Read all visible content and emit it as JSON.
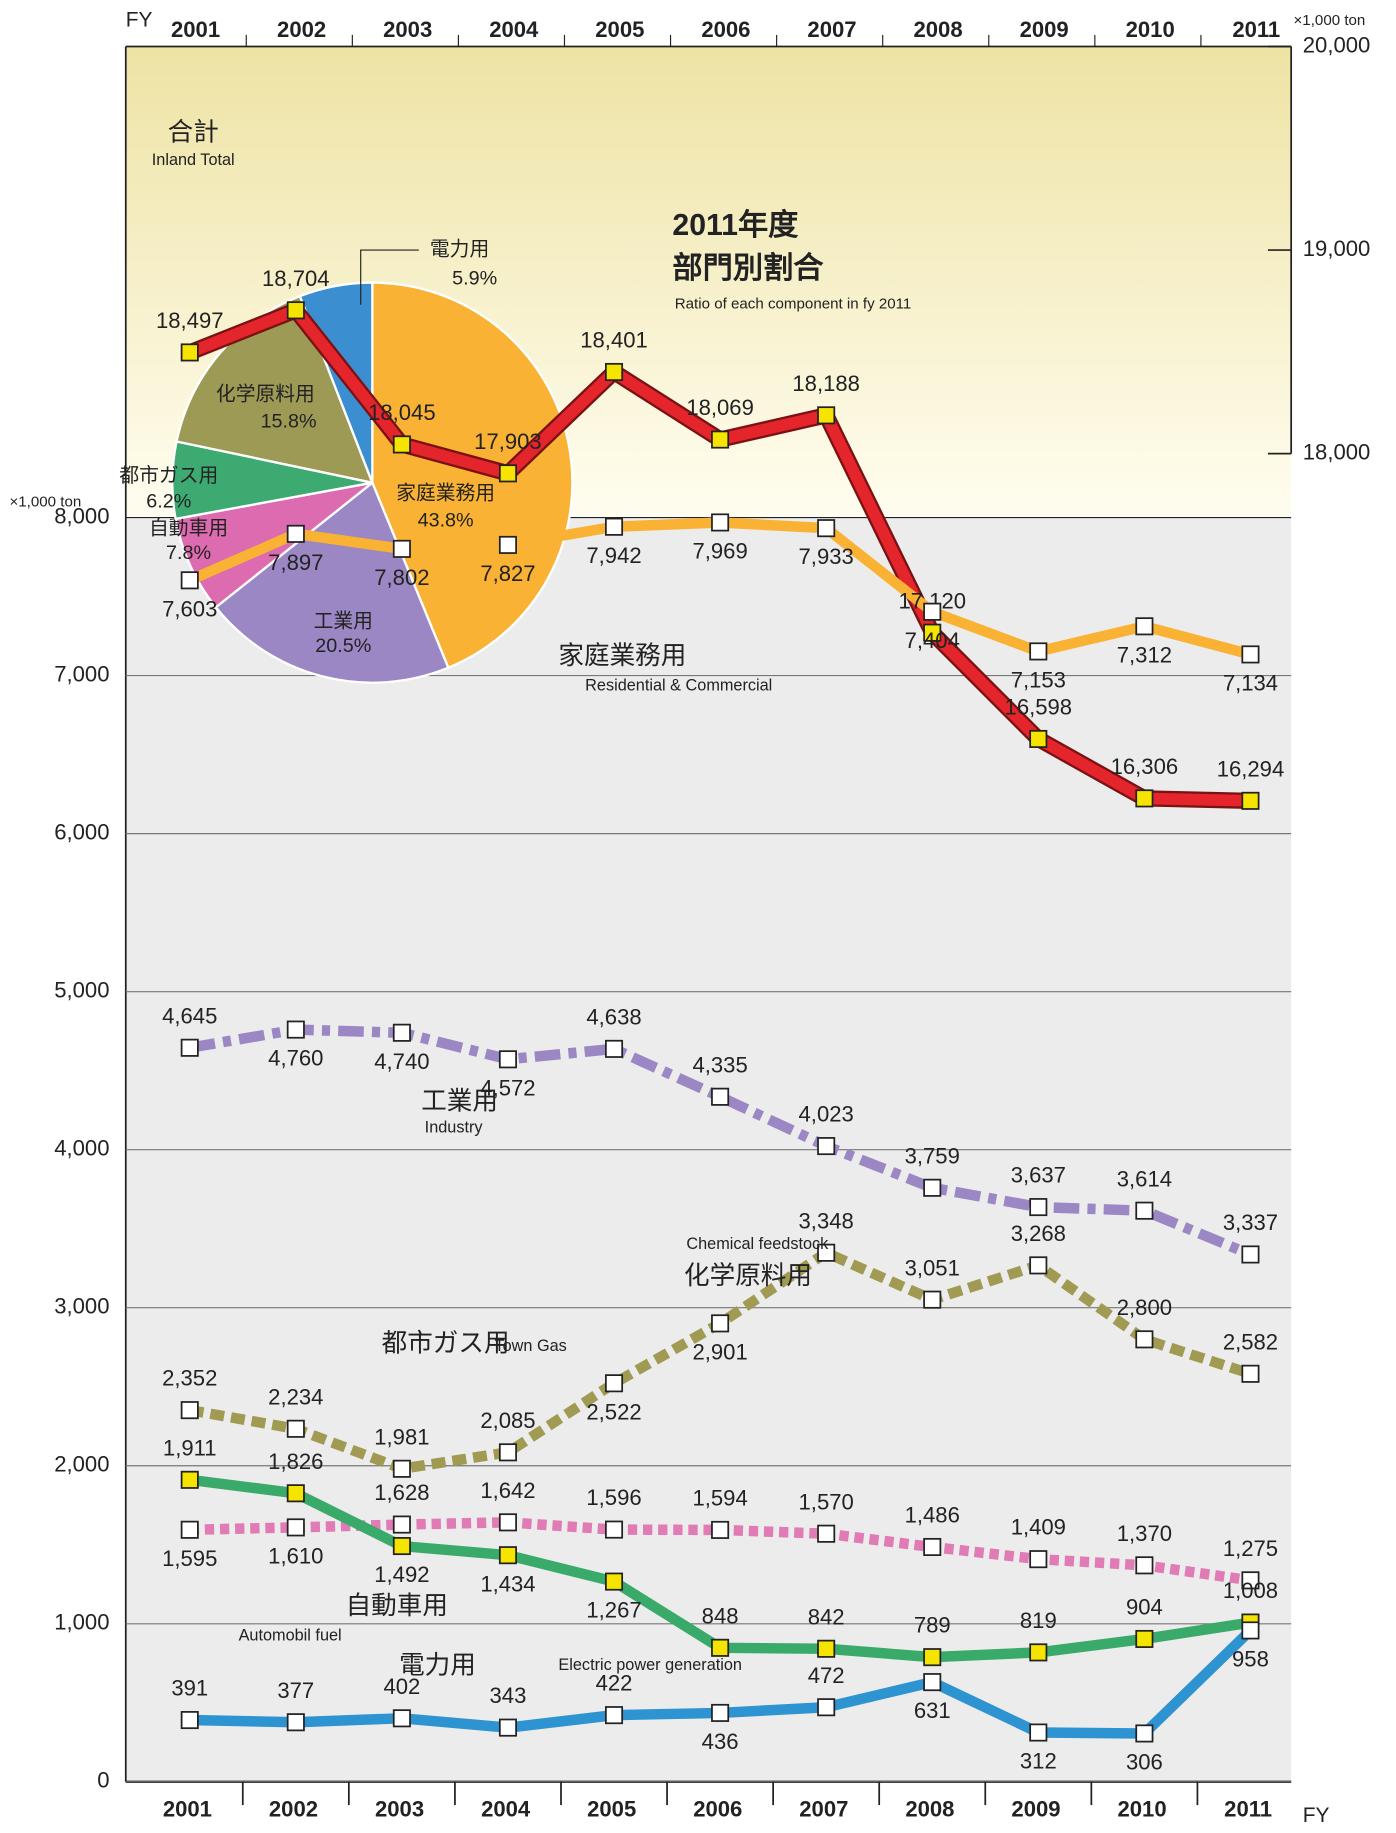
{
  "chart_data": [
    {
      "type": "line",
      "x_label": "FY",
      "y_unit": "×1,000 ton",
      "y2_unit": "×1,000 ton",
      "categories": [
        "2001",
        "2002",
        "2003",
        "2004",
        "2005",
        "2006",
        "2007",
        "2008",
        "2009",
        "2010",
        "2011"
      ],
      "ylim": [
        0,
        8000
      ],
      "yticks": [
        0,
        {
          "value": 1000,
          "label": "1,000"
        },
        {
          "value": 2000,
          "label": "2,000"
        },
        {
          "value": 3000,
          "label": "3,000"
        },
        {
          "value": 4000,
          "label": "4,000"
        },
        {
          "value": 5000,
          "label": "5,000"
        },
        {
          "value": 6000,
          "label": "6,000"
        },
        {
          "value": 7000,
          "label": "7,000"
        },
        {
          "value": 8000,
          "label": "8,000"
        }
      ],
      "y2lim": [
        18000,
        20000
      ],
      "y2ticks": [
        {
          "value": 18000,
          "label": "18,000"
        },
        {
          "value": 19000,
          "label": "19,000"
        },
        {
          "value": 20000,
          "label": "20,000"
        }
      ],
      "grid": true,
      "series": [
        {
          "name": "合計",
          "name_en": "Inland Total",
          "color": "#e4252b",
          "axis": "y2",
          "values": [
            18497,
            18704,
            18045,
            17903,
            18401,
            18069,
            18188,
            17120,
            16598,
            16306,
            16294
          ],
          "value_labels": [
            "18,497",
            "18,704",
            "18,045",
            "17,903",
            "18,401",
            "18,069",
            "18,188",
            "17,120",
            "16,598",
            "16,306",
            "16,294"
          ]
        },
        {
          "name": "家庭業務用",
          "name_en": "Residential & Commercial",
          "color": "#f9b233",
          "values": [
            7603,
            7897,
            7802,
            7827,
            7942,
            7969,
            7933,
            7404,
            7153,
            7312,
            7134
          ],
          "value_labels": [
            "7,603",
            "7,897",
            "7,802",
            "7,827",
            "7,942",
            "7,969",
            "7,933",
            "7,404",
            "7,153",
            "7,312",
            "7,134"
          ]
        },
        {
          "name": "工業用",
          "name_en": "Industry",
          "color": "#9b87c3",
          "values": [
            4645,
            4760,
            4740,
            4572,
            4638,
            4335,
            4023,
            3759,
            3637,
            3614,
            3337
          ],
          "value_labels": [
            "4,645",
            "4,760",
            "4,740",
            "4,572",
            "4,638",
            "4,335",
            "4,023",
            "3,759",
            "3,637",
            "3,614",
            "3,337"
          ]
        },
        {
          "name": "化学原料用",
          "name_en": "Chemical feedstock",
          "color": "#a09a52",
          "values": [
            2352,
            2234,
            1981,
            2085,
            2522,
            2901,
            3348,
            3051,
            3268,
            2800,
            2582
          ],
          "value_labels": [
            "2,352",
            "2,234",
            "1,981",
            "2,085",
            "2,522",
            "2,901",
            "3,348",
            "3,051",
            "3,268",
            "2,800",
            "2,582"
          ]
        },
        {
          "name": "自動車用",
          "name_en": "Automobil fuel",
          "color": "#e07bb5",
          "values": [
            1595,
            1610,
            1628,
            1642,
            1596,
            1594,
            1570,
            1486,
            1409,
            1370,
            1275
          ],
          "value_labels": [
            "1,595",
            "1,610",
            "1,628",
            "1,642",
            "1,596",
            "1,594",
            "1,570",
            "1,486",
            "1,409",
            "1,370",
            "1,275"
          ]
        },
        {
          "name": "都市ガス用",
          "name_en": "Town Gas",
          "color": "#3aaa6b",
          "values": [
            1911,
            1826,
            1492,
            1434,
            1267,
            848,
            842,
            789,
            819,
            904,
            1008
          ],
          "value_labels": [
            "1,911",
            "1,826",
            "1,492",
            "1,434",
            "1,267",
            "848",
            "842",
            "789",
            "819",
            "904",
            "1,008"
          ]
        },
        {
          "name": "電力用",
          "name_en": "Electric power generation",
          "color": "#2e93d1",
          "values": [
            391,
            377,
            402,
            343,
            422,
            436,
            472,
            631,
            312,
            306,
            958
          ],
          "value_labels": [
            "391",
            "377",
            "402",
            "343",
            "422",
            "436",
            "472",
            "631",
            "312",
            "306",
            "958"
          ]
        }
      ]
    },
    {
      "type": "pie",
      "title": "2011年度",
      "subtitle": "部門別割合",
      "caption": "Ratio of each component in fy 2011",
      "categories": [
        "家庭業務用",
        "工業用",
        "自動車用",
        "都市ガス用",
        "化学原料用",
        "電力用"
      ],
      "values": [
        43.8,
        20.5,
        7.8,
        6.2,
        15.8,
        5.9
      ],
      "value_labels": [
        "43.8%",
        "20.5%",
        "7.8%",
        "6.2%",
        "15.8%",
        "5.9%"
      ],
      "colors": [
        "#f9b233",
        "#9b87c3",
        "#dc6bb0",
        "#3daa72",
        "#9c9a55",
        "#3b8fd0"
      ]
    }
  ]
}
